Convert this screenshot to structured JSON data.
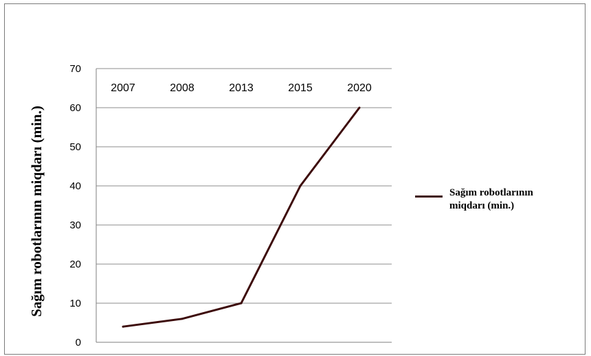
{
  "chart_data": {
    "type": "line",
    "categories": [
      "2007",
      "2008",
      "2013",
      "2015",
      "2020"
    ],
    "series": [
      {
        "name": "Sağım robotlarının miqdarı (min.)",
        "values": [
          4,
          6,
          10,
          40,
          60
        ],
        "color": "#3d0b0b"
      }
    ],
    "ylabel": "Sağım robotlarının miqdarı (min.)",
    "xlabel": "",
    "ylim": [
      0,
      70
    ],
    "yticks": [
      "0",
      "10",
      "20",
      "30",
      "40",
      "50",
      "60",
      "70"
    ],
    "grid": true,
    "legend": "right"
  }
}
